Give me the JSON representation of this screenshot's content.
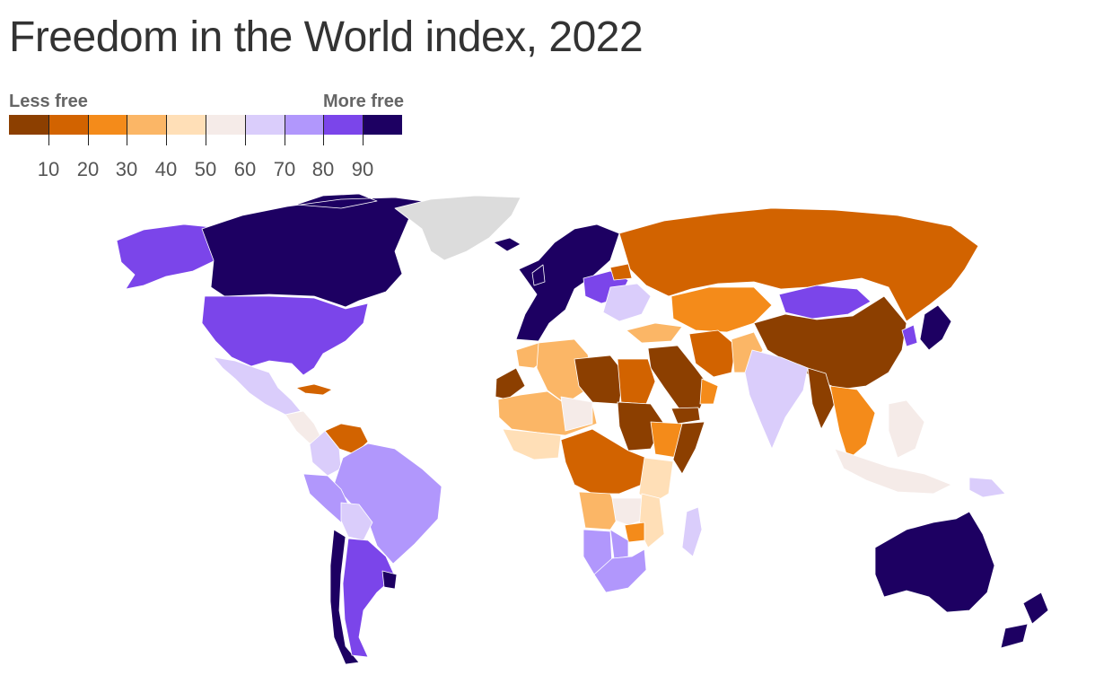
{
  "title": "Freedom in the World index, 2022",
  "legend": {
    "low_label": "Less free",
    "high_label": "More free",
    "bins": [
      {
        "min": 0,
        "max": 10,
        "color": "#8c3f00"
      },
      {
        "min": 10,
        "max": 20,
        "color": "#d26300"
      },
      {
        "min": 20,
        "max": 30,
        "color": "#f48b1a"
      },
      {
        "min": 30,
        "max": 40,
        "color": "#fbb666"
      },
      {
        "min": 40,
        "max": 50,
        "color": "#ffdfb7"
      },
      {
        "min": 50,
        "max": 60,
        "color": "#f5ebe8"
      },
      {
        "min": 60,
        "max": 70,
        "color": "#dacdfb"
      },
      {
        "min": 70,
        "max": 80,
        "color": "#b197fc"
      },
      {
        "min": 80,
        "max": 90,
        "color": "#7b45ea"
      },
      {
        "min": 90,
        "max": 100,
        "color": "#1d0062"
      }
    ],
    "ticks": [
      "10",
      "20",
      "30",
      "40",
      "50",
      "60",
      "70",
      "80",
      "90"
    ]
  },
  "no_data_color": "#dcdcdc",
  "regions": [
    {
      "name": "Canada",
      "bin": 9
    },
    {
      "name": "United States",
      "bin": 8
    },
    {
      "name": "Alaska",
      "bin": 8
    },
    {
      "name": "Mexico",
      "bin": 6
    },
    {
      "name": "Central America",
      "bin": 5
    },
    {
      "name": "Cuba",
      "bin": 1
    },
    {
      "name": "Venezuela",
      "bin": 1
    },
    {
      "name": "Colombia",
      "bin": 6
    },
    {
      "name": "Brazil",
      "bin": 7
    },
    {
      "name": "Peru",
      "bin": 7
    },
    {
      "name": "Bolivia",
      "bin": 6
    },
    {
      "name": "Argentina",
      "bin": 8
    },
    {
      "name": "Chile",
      "bin": 9
    },
    {
      "name": "Uruguay",
      "bin": 9
    },
    {
      "name": "Greenland",
      "bin": null
    },
    {
      "name": "Iceland",
      "bin": 9
    },
    {
      "name": "Western Europe",
      "bin": 9
    },
    {
      "name": "Central Europe",
      "bin": 8
    },
    {
      "name": "Eastern Europe",
      "bin": 6
    },
    {
      "name": "Belarus",
      "bin": 1
    },
    {
      "name": "Russia",
      "bin": 1
    },
    {
      "name": "Turkey",
      "bin": 3
    },
    {
      "name": "Central Asia",
      "bin": 2
    },
    {
      "name": "Mongolia",
      "bin": 8
    },
    {
      "name": "China",
      "bin": 0
    },
    {
      "name": "Korea",
      "bin": 8
    },
    {
      "name": "Japan",
      "bin": 9
    },
    {
      "name": "Iran",
      "bin": 1
    },
    {
      "name": "Pakistan",
      "bin": 3
    },
    {
      "name": "India",
      "bin": 6
    },
    {
      "name": "Southeast Asia",
      "bin": 2
    },
    {
      "name": "Myanmar",
      "bin": 0
    },
    {
      "name": "Indonesia",
      "bin": 5
    },
    {
      "name": "Papua New Guinea",
      "bin": 6
    },
    {
      "name": "Arabian Peninsula",
      "bin": 0
    },
    {
      "name": "Oman",
      "bin": 2
    },
    {
      "name": "Yemen",
      "bin": 0
    },
    {
      "name": "Egypt",
      "bin": 1
    },
    {
      "name": "Libya",
      "bin": 0
    },
    {
      "name": "Algeria",
      "bin": 3
    },
    {
      "name": "Morocco",
      "bin": 3
    },
    {
      "name": "Western Sahara",
      "bin": 0
    },
    {
      "name": "Sahel",
      "bin": 3
    },
    {
      "name": "West Africa",
      "bin": 4
    },
    {
      "name": "Niger",
      "bin": 5
    },
    {
      "name": "Sudan",
      "bin": 0
    },
    {
      "name": "Ethiopia",
      "bin": 2
    },
    {
      "name": "Somalia",
      "bin": 0
    },
    {
      "name": "Central Africa",
      "bin": 1
    },
    {
      "name": "East Africa",
      "bin": 4
    },
    {
      "name": "Angola",
      "bin": 3
    },
    {
      "name": "Zambia",
      "bin": 5
    },
    {
      "name": "Mozambique",
      "bin": 4
    },
    {
      "name": "Zimbabwe",
      "bin": 2
    },
    {
      "name": "Namibia",
      "bin": 7
    },
    {
      "name": "Botswana",
      "bin": 7
    },
    {
      "name": "South Africa",
      "bin": 7
    },
    {
      "name": "Madagascar",
      "bin": 6
    },
    {
      "name": "Australia",
      "bin": 9
    },
    {
      "name": "New Zealand",
      "bin": 9
    }
  ]
}
